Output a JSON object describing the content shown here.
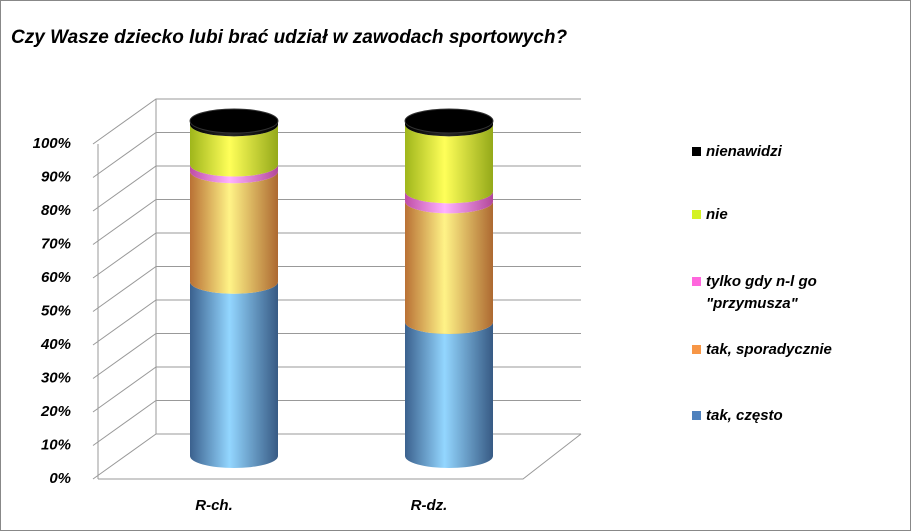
{
  "chart_data": {
    "type": "bar",
    "stacked": true,
    "title": "Czy Wasze dziecko lubi  brać udział w zawodach sportowych?",
    "categories": [
      "R-ch.",
      "R-dz."
    ],
    "series": [
      {
        "name": "tak, często",
        "color": "#4f81bd",
        "values": [
          52,
          40
        ]
      },
      {
        "name": "tak, sporadycznie",
        "color": "#f79646",
        "values": [
          33,
          36
        ]
      },
      {
        "name": "tylko gdy n-l go \"przymusza\"",
        "color": "#ff66dd",
        "values": [
          2,
          3
        ]
      },
      {
        "name": "nie",
        "color": "#d4f224",
        "values": [
          12,
          20
        ]
      },
      {
        "name": "nienawidzi",
        "color": "#000000",
        "values": [
          1,
          1
        ]
      }
    ],
    "ylim": [
      0,
      100
    ],
    "yticks": [
      {
        "value": 0,
        "label": "0%"
      },
      {
        "value": 10,
        "label": "10%"
      },
      {
        "value": 20,
        "label": "20%"
      },
      {
        "value": 30,
        "label": "30%"
      },
      {
        "value": 40,
        "label": "40%"
      },
      {
        "value": 50,
        "label": "50%"
      },
      {
        "value": 60,
        "label": "60%"
      },
      {
        "value": 70,
        "label": "70%"
      },
      {
        "value": 80,
        "label": "80%"
      },
      {
        "value": 90,
        "label": "90%"
      },
      {
        "value": 100,
        "label": "100%"
      }
    ],
    "grid": true
  }
}
